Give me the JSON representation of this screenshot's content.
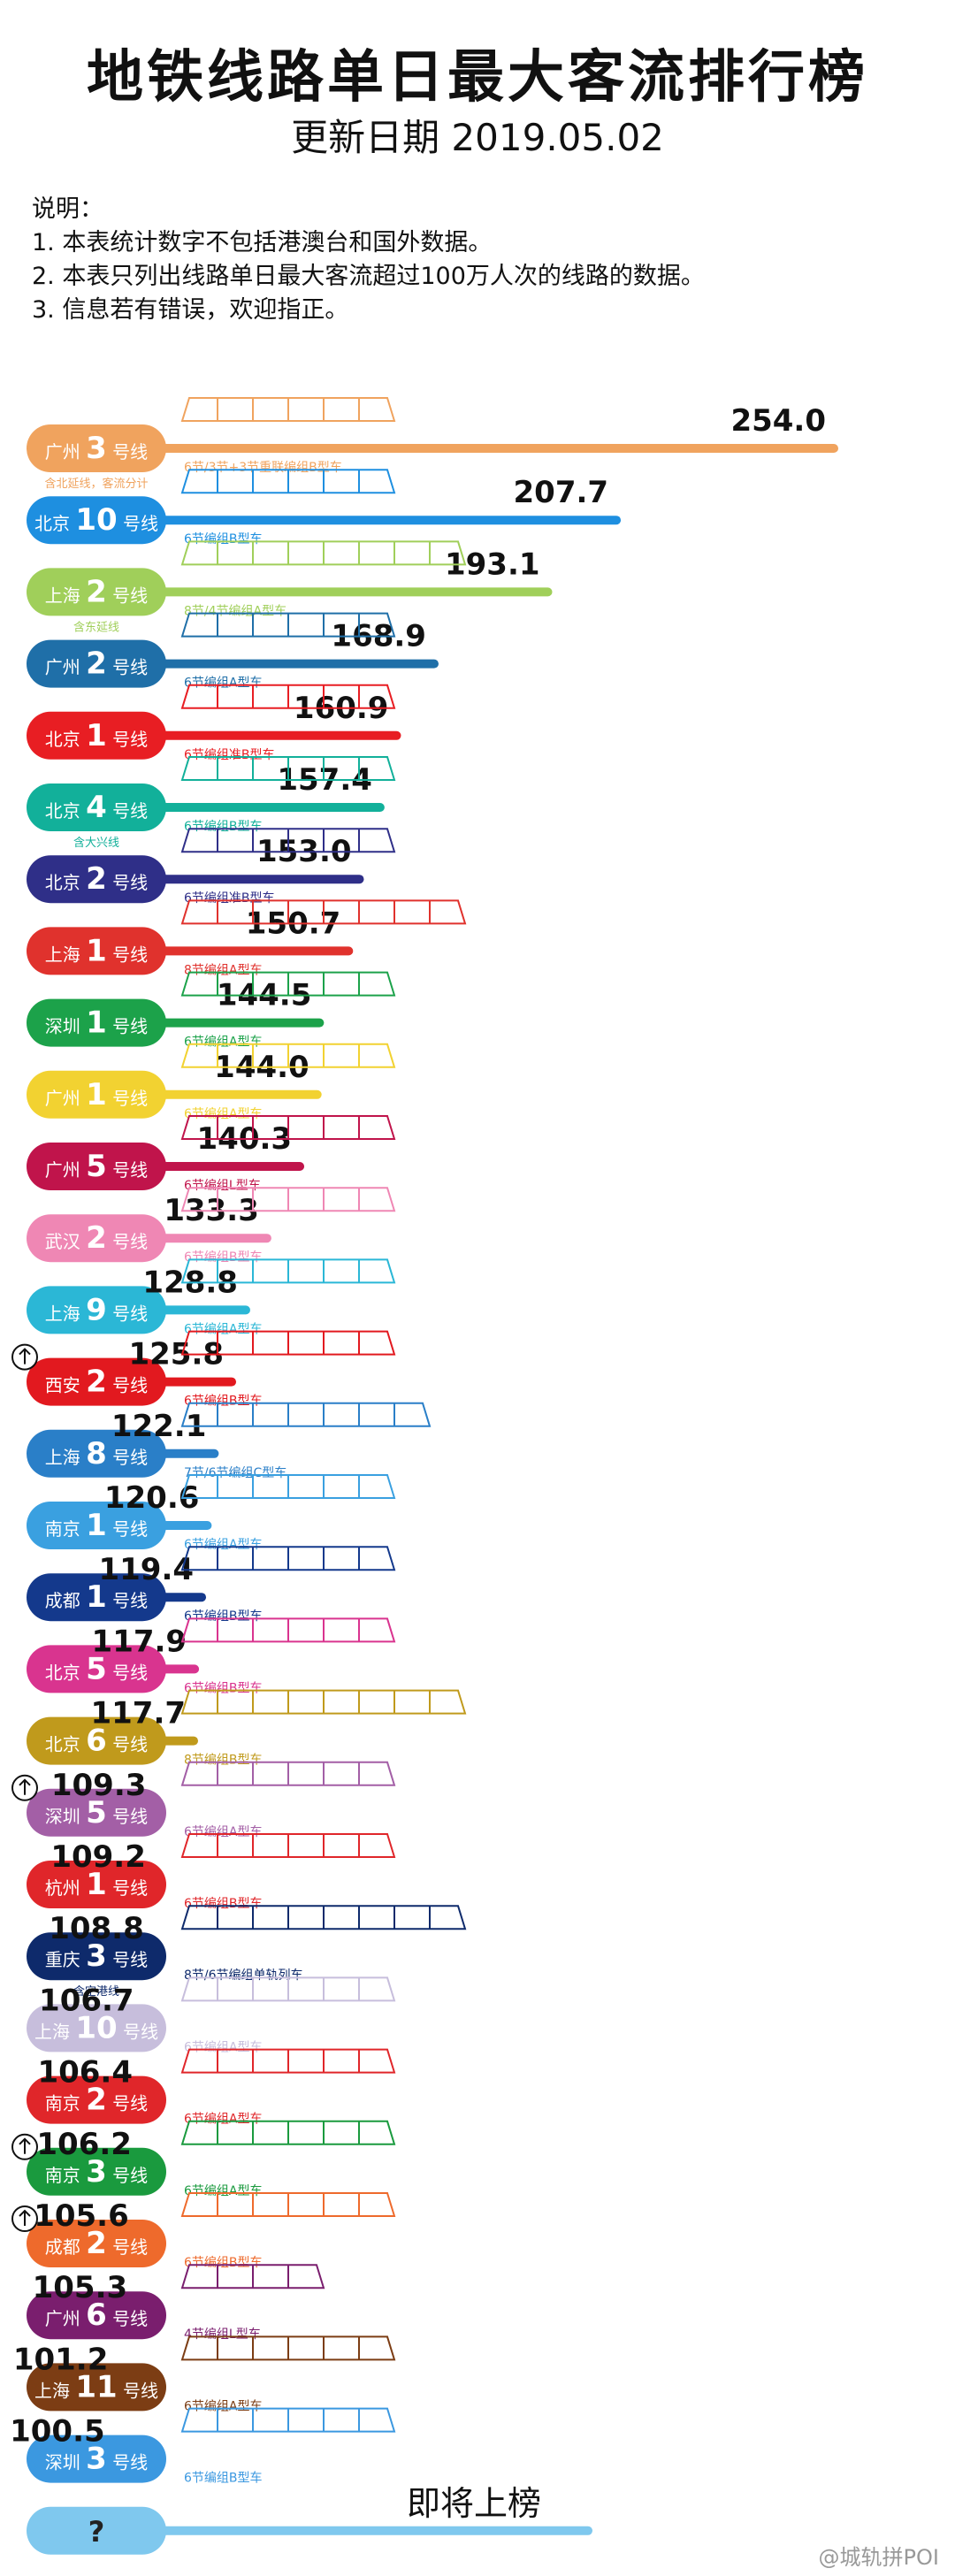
{
  "header": {
    "title": "地铁线路单日最大客流排行榜",
    "subtitle": "更新日期 2019.05.02"
  },
  "notes": {
    "heading": "说明：",
    "items": [
      "1. 本表统计数字不包括港澳台和国外数据。",
      "2. 本表只列出线路单日最大客流超过100万人次的线路的数据。",
      "3. 信息若有错误，欢迎指正。"
    ]
  },
  "watermark": "@城轨拼POI",
  "chart_data": {
    "type": "bar",
    "orientation": "horizontal",
    "unit": "万人次",
    "xlim": [
      0,
      254
    ],
    "bars": [
      {
        "city": "广州",
        "line": "3",
        "suffix": "号线",
        "value": 254.0,
        "value_label": "254.0",
        "color": "#F0A35E",
        "cars": 6,
        "note": "6节/3节+3节重联编组B型车",
        "sub_label": "含北延线，客流分计",
        "arrow": false
      },
      {
        "city": "北京",
        "line": "10",
        "suffix": "号线",
        "value": 207.7,
        "value_label": "207.7",
        "color": "#1E8FE0",
        "cars": 6,
        "note": "6节编组B型车",
        "sub_label": "",
        "arrow": false
      },
      {
        "city": "上海",
        "line": "2",
        "suffix": "号线",
        "value": 193.1,
        "value_label": "193.1",
        "color": "#A0CF5A",
        "cars": 8,
        "note": "8节/4节编组A型车",
        "sub_label": "含东延线",
        "arrow": false
      },
      {
        "city": "广州",
        "line": "2",
        "suffix": "号线",
        "value": 168.9,
        "value_label": "168.9",
        "color": "#1F6FA8",
        "cars": 6,
        "note": "6节编组A型车",
        "sub_label": "",
        "arrow": false
      },
      {
        "city": "北京",
        "line": "1",
        "suffix": "号线",
        "value": 160.9,
        "value_label": "160.9",
        "color": "#E81E23",
        "cars": 6,
        "note": "6节编组准B型车",
        "sub_label": "",
        "arrow": false
      },
      {
        "city": "北京",
        "line": "4",
        "suffix": "号线",
        "value": 157.4,
        "value_label": "157.4",
        "color": "#12B09A",
        "cars": 6,
        "note": "6节编组B型车",
        "sub_label": "含大兴线",
        "arrow": false
      },
      {
        "city": "北京",
        "line": "2",
        "suffix": "号线",
        "value": 153.0,
        "value_label": "153.0",
        "color": "#2F2F88",
        "cars": 6,
        "note": "6节编组准B型车",
        "sub_label": "",
        "arrow": false
      },
      {
        "city": "上海",
        "line": "1",
        "suffix": "号线",
        "value": 150.7,
        "value_label": "150.7",
        "color": "#E0322D",
        "cars": 8,
        "note": "8节编组A型车",
        "sub_label": "",
        "arrow": false
      },
      {
        "city": "深圳",
        "line": "1",
        "suffix": "号线",
        "value": 144.5,
        "value_label": "144.5",
        "color": "#1CA24A",
        "cars": 6,
        "note": "6节编组A型车",
        "sub_label": "",
        "arrow": false
      },
      {
        "city": "广州",
        "line": "1",
        "suffix": "号线",
        "value": 144.0,
        "value_label": "144.0",
        "color": "#F2D231",
        "cars": 6,
        "note": "6节编组A型车",
        "sub_label": "",
        "arrow": false
      },
      {
        "city": "广州",
        "line": "5",
        "suffix": "号线",
        "value": 140.3,
        "value_label": "140.3",
        "color": "#C0144B",
        "cars": 6,
        "note": "6节编组L型车",
        "sub_label": "",
        "arrow": false
      },
      {
        "city": "武汉",
        "line": "2",
        "suffix": "号线",
        "value": 133.3,
        "value_label": "133.3",
        "color": "#EF87B4",
        "cars": 6,
        "note": "6节编组B型车",
        "sub_label": "",
        "arrow": false
      },
      {
        "city": "上海",
        "line": "9",
        "suffix": "号线",
        "value": 128.8,
        "value_label": "128.8",
        "color": "#2BB7D6",
        "cars": 6,
        "note": "6节编组A型车",
        "sub_label": "",
        "arrow": false
      },
      {
        "city": "西安",
        "line": "2",
        "suffix": "号线",
        "value": 125.8,
        "value_label": "125.8",
        "color": "#E2191F",
        "cars": 6,
        "note": "6节编组B型车",
        "sub_label": "",
        "arrow": true
      },
      {
        "city": "上海",
        "line": "8",
        "suffix": "号线",
        "value": 122.1,
        "value_label": "122.1",
        "color": "#2A7FC8",
        "cars": 7,
        "note": "7节/6节编组C型车",
        "sub_label": "",
        "arrow": false
      },
      {
        "city": "南京",
        "line": "1",
        "suffix": "号线",
        "value": 120.6,
        "value_label": "120.6",
        "color": "#3AA0E0",
        "cars": 6,
        "note": "6节编组A型车",
        "sub_label": "",
        "arrow": false
      },
      {
        "city": "成都",
        "line": "1",
        "suffix": "号线",
        "value": 119.4,
        "value_label": "119.4",
        "color": "#14398C",
        "cars": 6,
        "note": "6节编组B型车",
        "sub_label": "",
        "arrow": false
      },
      {
        "city": "北京",
        "line": "5",
        "suffix": "号线",
        "value": 117.9,
        "value_label": "117.9",
        "color": "#D9348F",
        "cars": 6,
        "note": "6节编组B型车",
        "sub_label": "",
        "arrow": false
      },
      {
        "city": "北京",
        "line": "6",
        "suffix": "号线",
        "value": 117.7,
        "value_label": "117.7",
        "color": "#C09A1C",
        "cars": 8,
        "note": "8节编组B型车",
        "sub_label": "",
        "arrow": false
      },
      {
        "city": "深圳",
        "line": "5",
        "suffix": "号线",
        "value": 109.3,
        "value_label": "109.3",
        "color": "#A35FA6",
        "cars": 6,
        "note": "6节编组A型车",
        "sub_label": "",
        "arrow": true
      },
      {
        "city": "杭州",
        "line": "1",
        "suffix": "号线",
        "value": 109.2,
        "value_label": "109.2",
        "color": "#E0262A",
        "cars": 6,
        "note": "6节编组B型车",
        "sub_label": "",
        "arrow": false
      },
      {
        "city": "重庆",
        "line": "3",
        "suffix": "号线",
        "value": 108.8,
        "value_label": "108.8",
        "color": "#0E2A6B",
        "cars": 8,
        "note": "8节/6节编组单轨列车",
        "sub_label": "含空港线",
        "arrow": false
      },
      {
        "city": "上海",
        "line": "10",
        "suffix": "号线",
        "value": 106.7,
        "value_label": "106.7",
        "color": "#C7BEDC",
        "cars": 6,
        "note": "6节编组A型车",
        "sub_label": "",
        "arrow": false
      },
      {
        "city": "南京",
        "line": "2",
        "suffix": "号线",
        "value": 106.4,
        "value_label": "106.4",
        "color": "#E0262A",
        "cars": 6,
        "note": "6节编组A型车",
        "sub_label": "",
        "arrow": false
      },
      {
        "city": "南京",
        "line": "3",
        "suffix": "号线",
        "value": 106.2,
        "value_label": "106.2",
        "color": "#1A9A3E",
        "cars": 6,
        "note": "6节编组A型车",
        "sub_label": "",
        "arrow": true
      },
      {
        "city": "成都",
        "line": "2",
        "suffix": "号线",
        "value": 105.6,
        "value_label": "105.6",
        "color": "#EE6A2C",
        "cars": 6,
        "note": "6节编组B型车",
        "sub_label": "",
        "arrow": true
      },
      {
        "city": "广州",
        "line": "6",
        "suffix": "号线",
        "value": 105.3,
        "value_label": "105.3",
        "color": "#7A1E6E",
        "cars": 4,
        "note": "4节编组L型车",
        "sub_label": "",
        "arrow": false
      },
      {
        "city": "上海",
        "line": "11",
        "suffix": "号线",
        "value": 101.2,
        "value_label": "101.2",
        "color": "#7C3D14",
        "cars": 6,
        "note": "6节编组A型车",
        "sub_label": "",
        "arrow": false
      },
      {
        "city": "深圳",
        "line": "3",
        "suffix": "号线",
        "value": 100.5,
        "value_label": "100.5",
        "color": "#3B98E0",
        "cars": 6,
        "note": "6节编组B型车",
        "sub_label": "",
        "arrow": false
      }
    ],
    "upcoming": {
      "label": "?",
      "value_label": "即将上榜",
      "color": "#7FC8EE"
    }
  }
}
